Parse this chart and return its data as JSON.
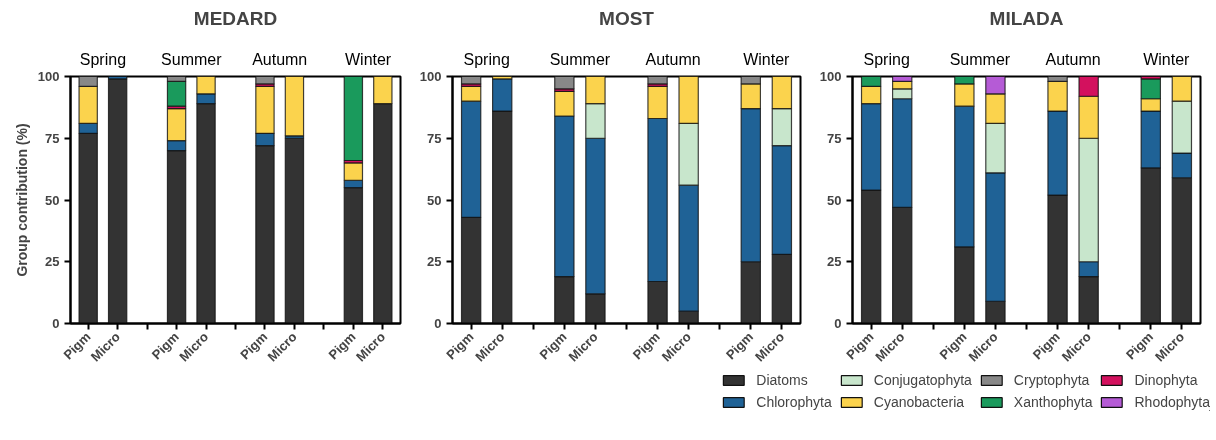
{
  "chart_data": [
    {
      "type": "bar",
      "stacked": true,
      "title": "MEDARD",
      "ylabel": "Group contribution (%)",
      "annotations": [
        "Spring",
        "Summer",
        "Autumn",
        "Winter"
      ],
      "categories": [
        "Pigm",
        "Micro",
        null,
        "Pigm",
        "Micro",
        null,
        "Pigm",
        "Micro",
        null,
        "Pigm",
        "Micro"
      ],
      "ylim": [
        0,
        100
      ],
      "yticks": [
        0,
        25,
        50,
        75,
        100
      ],
      "grid": false,
      "series": [
        {
          "color": "#333333",
          "values": [
            77,
            99,
            null,
            70,
            89,
            null,
            72,
            75,
            null,
            55,
            89
          ]
        },
        {
          "color": "#1f6296",
          "values": [
            4,
            1,
            null,
            4,
            4,
            null,
            5,
            1,
            null,
            3,
            0
          ]
        },
        {
          "color": "#fbd34d",
          "values": [
            15,
            0,
            null,
            13,
            7,
            null,
            19,
            24,
            null,
            7,
            11
          ]
        },
        {
          "color": "#d3115e",
          "values": [
            0,
            0,
            null,
            1,
            0,
            null,
            1,
            0,
            null,
            1,
            0
          ]
        },
        {
          "color": "#1a9a5c",
          "values": [
            0,
            0,
            null,
            10,
            0,
            null,
            0,
            0,
            null,
            34,
            0
          ]
        },
        {
          "color": "#888888",
          "values": [
            4,
            0,
            null,
            2,
            0,
            null,
            3,
            0,
            null,
            0,
            0
          ]
        }
      ]
    },
    {
      "type": "bar",
      "stacked": true,
      "title": "MOST",
      "annotations": [
        "Spring",
        "Summer",
        "Autumn",
        "Winter"
      ],
      "categories": [
        "Pigm",
        "Micro",
        null,
        "Pigm",
        "Micro",
        null,
        "Pigm",
        "Micro",
        null,
        "Pigm",
        "Micro"
      ],
      "ylim": [
        0,
        100
      ],
      "yticks": [
        0,
        25,
        50,
        75,
        100
      ],
      "grid": false,
      "series": [
        {
          "color": "#333333",
          "values": [
            43,
            86,
            null,
            19,
            12,
            null,
            17,
            5,
            null,
            25,
            28
          ]
        },
        {
          "color": "#1f6296",
          "values": [
            47,
            13,
            null,
            65,
            63,
            null,
            66,
            51,
            null,
            62,
            44
          ]
        },
        {
          "color": "#c8e6cc",
          "values": [
            0,
            0,
            null,
            0,
            14,
            null,
            0,
            25,
            null,
            0,
            15
          ]
        },
        {
          "color": "#fbd34d",
          "values": [
            6,
            1,
            null,
            10,
            11,
            null,
            13,
            19,
            null,
            10,
            13
          ]
        },
        {
          "color": "#d3115e",
          "values": [
            1,
            0,
            null,
            1,
            0,
            null,
            1,
            0,
            null,
            0,
            0
          ]
        },
        {
          "color": "#888888",
          "values": [
            3,
            0,
            null,
            5,
            0,
            null,
            3,
            0,
            null,
            3,
            0
          ]
        }
      ]
    },
    {
      "type": "bar",
      "stacked": true,
      "title": "MILADA",
      "annotations": [
        "Spring",
        "Summer",
        "Autumn",
        "Winter"
      ],
      "categories": [
        "Pigm",
        "Micro",
        null,
        "Pigm",
        "Micro",
        null,
        "Pigm",
        "Micro",
        null,
        "Pigm",
        "Micro"
      ],
      "ylim": [
        0,
        100
      ],
      "yticks": [
        0,
        25,
        50,
        75,
        100
      ],
      "grid": false,
      "legend": "bottom",
      "series": [
        {
          "name": "Diatoms",
          "color": "#333333",
          "values": [
            54,
            47,
            null,
            31,
            9,
            null,
            52,
            19,
            null,
            63,
            59
          ]
        },
        {
          "name": "Chlorophyta",
          "color": "#1f6296",
          "values": [
            35,
            44,
            null,
            57,
            52,
            null,
            34,
            6,
            null,
            23,
            10
          ]
        },
        {
          "name": "Conjugatophyta",
          "color": "#c8e6cc",
          "values": [
            0,
            4,
            null,
            0,
            20,
            null,
            0,
            50,
            null,
            0,
            21
          ]
        },
        {
          "name": "Cyanobacteria",
          "color": "#fbd34d",
          "values": [
            7,
            3,
            null,
            9,
            12,
            null,
            12,
            17,
            null,
            5,
            10
          ]
        },
        {
          "name": "Cryptophyta",
          "color": "#888888",
          "values": [
            0,
            0,
            null,
            0,
            0,
            null,
            2,
            0,
            null,
            0,
            0
          ]
        },
        {
          "name": "Xanthophyta",
          "color": "#1a9a5c",
          "values": [
            4,
            0,
            null,
            3,
            0,
            null,
            0,
            0,
            null,
            8,
            0
          ]
        },
        {
          "name": "Dinophyta",
          "color": "#d3115e",
          "values": [
            0,
            0,
            null,
            0,
            0,
            null,
            0,
            8,
            null,
            1,
            0
          ]
        },
        {
          "name": "Rhodophyta",
          "color": "#b55bd6",
          "values": [
            0,
            2,
            null,
            0,
            7,
            null,
            0,
            0,
            null,
            0,
            0
          ]
        }
      ]
    }
  ]
}
